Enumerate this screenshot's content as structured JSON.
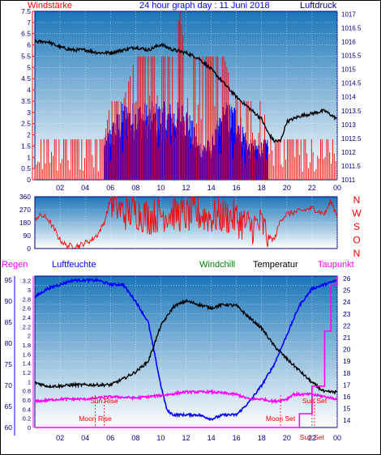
{
  "header": {
    "left_label": "Windstärke",
    "title": "24 hour graph day : 11 Juni 2018",
    "right_label": "Luftdruck"
  },
  "chart_data": [
    {
      "id": "wind_pressure",
      "type": "line",
      "title": "24 hour graph day : 11 Juni 2018",
      "x_ticks": [
        "02",
        "04",
        "06",
        "08",
        "10",
        "12",
        "14",
        "16",
        "18",
        "20",
        "22",
        "00"
      ],
      "y_left": {
        "label": "Windstärke",
        "ticks": [
          "0",
          "0.5",
          "1",
          "1.5",
          "2",
          "2.5",
          "3",
          "3.5",
          "4",
          "4.5",
          "5",
          "5.5",
          "6",
          "6.5",
          "7",
          "7.5"
        ],
        "range": [
          0,
          7.5
        ]
      },
      "y_right": {
        "label": "Luftdruck",
        "ticks": [
          "1011",
          "1011.5",
          "1012",
          "1012.5",
          "1013",
          "1013.5",
          "1014",
          "1014.5",
          "1015",
          "1015.5",
          "1016",
          "1016.5",
          "1017"
        ],
        "range": [
          1011,
          1017.1
        ]
      },
      "series": [
        {
          "name": "Windstärke",
          "color": "#ff0000",
          "x": [
            0,
            5.5,
            6,
            7,
            8,
            9,
            10,
            11,
            11.5,
            12,
            13,
            14,
            15,
            16,
            17,
            18,
            18.6,
            19,
            20,
            21,
            22,
            23,
            24
          ],
          "y": [
            1.8,
            1.8,
            3.5,
            3.5,
            5.5,
            5.5,
            5.5,
            5.5,
            7.5,
            5.5,
            5.5,
            5.5,
            5.5,
            3.5,
            3.5,
            3.5,
            2,
            1.8,
            1.8,
            1.8,
            1.8,
            1.8,
            1.8
          ]
        },
        {
          "name": "Windböen",
          "color": "#0000ff",
          "x": [
            5.5,
            6,
            7,
            8,
            9,
            10,
            11,
            12,
            13,
            14,
            15,
            16,
            17,
            18,
            18.5
          ],
          "y": [
            1.8,
            2.5,
            3.5,
            3.5,
            3.5,
            3.5,
            3.5,
            3.5,
            1.8,
            1.8,
            3.5,
            3.5,
            1.8,
            1.8,
            1.8
          ]
        },
        {
          "name": "Luftdruck",
          "color": "#000000",
          "x": [
            0,
            1,
            2,
            3,
            4,
            5,
            6,
            7,
            8,
            9,
            10,
            11,
            12,
            13,
            14,
            15,
            16,
            17,
            18,
            18.5,
            19,
            19.5,
            20,
            21,
            22,
            23,
            24
          ],
          "y": [
            1016.0,
            1016.0,
            1015.8,
            1015.7,
            1015.7,
            1015.6,
            1015.6,
            1015.7,
            1015.8,
            1015.7,
            1015.9,
            1015.7,
            1015.6,
            1015.4,
            1015.0,
            1014.5,
            1014.0,
            1013.6,
            1013.2,
            1012.7,
            1012.4,
            1012.4,
            1013.1,
            1013.3,
            1013.4,
            1013.5,
            1013.2
          ]
        }
      ]
    },
    {
      "id": "wind_direction",
      "type": "line",
      "y_left": {
        "ticks": [
          "0",
          "90",
          "180",
          "270",
          "360"
        ],
        "range": [
          0,
          360
        ]
      },
      "y_right": {
        "ticks": [
          "N",
          "W",
          "S",
          "O",
          "N"
        ]
      },
      "series": [
        {
          "name": "Windrichtung",
          "color": "#ff0000",
          "x": [
            0,
            0.5,
            1,
            1.5,
            2,
            2.5,
            3,
            3.5,
            4,
            4.5,
            5,
            5.5,
            6,
            7,
            8,
            9,
            10,
            11,
            12,
            13,
            14,
            15,
            16,
            17,
            18,
            18.5,
            19,
            19.5,
            20,
            21,
            22,
            23,
            23.5,
            24
          ],
          "y": [
            210,
            230,
            210,
            140,
            60,
            20,
            20,
            20,
            40,
            60,
            100,
            180,
            340,
            250,
            260,
            220,
            240,
            250,
            230,
            240,
            220,
            230,
            210,
            150,
            170,
            80,
            60,
            200,
            240,
            260,
            280,
            240,
            330,
            230
          ]
        }
      ]
    },
    {
      "id": "humidity_temperature",
      "type": "line",
      "header_labels": [
        "Regen",
        "Luftfeuchte",
        "Windchill",
        "Temperatur",
        "Taupunkt"
      ],
      "x_ticks": [
        "02",
        "04",
        "06",
        "08",
        "10",
        "12",
        "14",
        "16",
        "18",
        "20",
        "22",
        "00"
      ],
      "y_left_outer": {
        "label": "Regen",
        "ticks": [
          "60",
          "65",
          "70",
          "75",
          "80",
          "85",
          "90",
          "95"
        ],
        "range": [
          60,
          96
        ]
      },
      "y_left_inner": {
        "ticks": [
          "0",
          "0.2",
          "0.4",
          "0.6",
          "0.8",
          "1",
          "1.2",
          "1.4",
          "1.6",
          "1.8",
          "2",
          "2.2",
          "2.4",
          "2.6",
          "2.8",
          "3",
          "3.2"
        ],
        "range": [
          0,
          3.3
        ]
      },
      "y_right": {
        "label": "Taupunkt",
        "ticks": [
          "14",
          "15",
          "16",
          "17",
          "18",
          "19",
          "20",
          "21",
          "22",
          "23",
          "24",
          "25",
          "26"
        ],
        "range": [
          13.4,
          26.2
        ]
      },
      "annotations": [
        {
          "text": "Sun Rise",
          "x": 5.5
        },
        {
          "text": "Moon Rise",
          "x": 4.8
        },
        {
          "text": "Moon Set",
          "x": 19.5
        },
        {
          "text": "Sun Set",
          "x": 22.2
        },
        {
          "text": "Sun Set",
          "x": 22.0
        }
      ],
      "series": [
        {
          "name": "Luftfeuchte",
          "color": "#0000ff",
          "x": [
            0,
            1,
            2,
            3,
            4,
            5,
            6,
            7,
            8,
            9,
            10,
            10.5,
            11,
            12,
            13,
            14,
            15,
            16,
            17,
            18,
            19,
            20,
            21,
            22,
            23,
            24
          ],
          "y": [
            91,
            93,
            94,
            95,
            95,
            95,
            94,
            94,
            90,
            85,
            70,
            64,
            63,
            63,
            63,
            62,
            63,
            63,
            66,
            70,
            75,
            82,
            89,
            93,
            94,
            95
          ]
        },
        {
          "name": "Temperatur",
          "color": "#000000",
          "x": [
            0,
            1,
            2,
            3,
            4,
            5,
            6,
            7,
            8,
            9,
            10,
            11,
            12,
            13,
            14,
            15,
            16,
            17,
            18,
            19,
            20,
            21,
            22,
            23,
            24
          ],
          "y": [
            17.2,
            16.9,
            16.9,
            17.0,
            17.0,
            17.0,
            17.0,
            17.5,
            18.1,
            19.0,
            22.0,
            23.6,
            24.1,
            23.8,
            23.5,
            23.8,
            23.7,
            22.7,
            21.8,
            20.3,
            19.2,
            18.2,
            17.2,
            16.4,
            16.4
          ]
        },
        {
          "name": "Taupunkt",
          "color": "#ff00ff",
          "x": [
            0,
            2,
            4,
            6,
            8,
            10,
            12,
            14,
            16,
            17,
            18,
            19,
            20,
            20.5,
            21,
            22,
            23,
            24
          ],
          "y": [
            15.6,
            15.8,
            15.8,
            16.0,
            15.9,
            16.1,
            16.4,
            16.4,
            16.2,
            15.8,
            15.8,
            15.6,
            15.8,
            16.2,
            16.2,
            16.2,
            16.0,
            15.8
          ]
        },
        {
          "name": "Regen",
          "color": "#ff00ff",
          "x": [
            0,
            20,
            21,
            22,
            23,
            23.5,
            24
          ],
          "y": [
            0,
            0,
            0.3,
            0.9,
            2.1,
            3.1,
            3.3
          ]
        }
      ]
    }
  ],
  "colors": {
    "bg_top": "#1b76b8",
    "bg_bottom": "#ffffff",
    "frame": "#000080"
  }
}
